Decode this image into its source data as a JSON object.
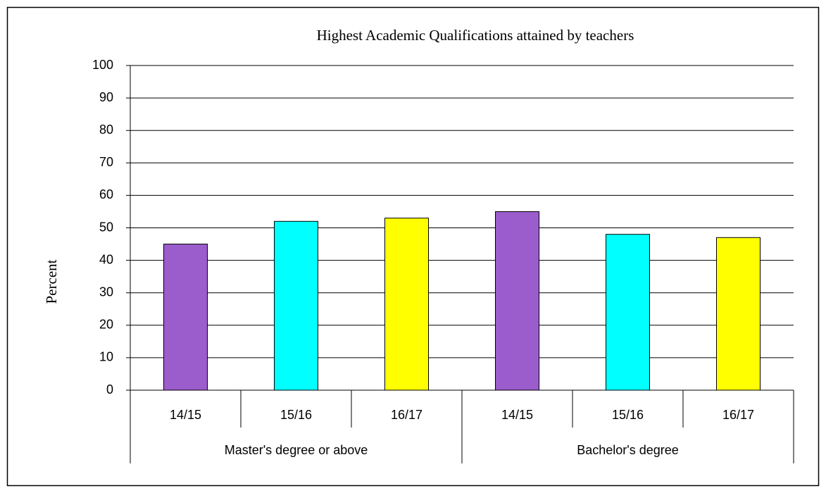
{
  "chart_data": {
    "type": "bar",
    "title": "Highest  Academic Qualifications attained by teachers",
    "y_label": "Percent",
    "groups": [
      {
        "label": "Master's degree or above",
        "categories": [
          "14/15",
          "15/16",
          "16/17"
        ],
        "values": [
          45,
          52,
          53
        ]
      },
      {
        "label": "Bachelor's degree",
        "categories": [
          "14/15",
          "15/16",
          "16/17"
        ],
        "values": [
          55,
          48,
          47
        ]
      }
    ],
    "colors": [
      "#9b5ccc",
      "#00ffff",
      "#ffff00"
    ],
    "ylim": [
      0,
      100
    ],
    "yticks": [
      0,
      10,
      20,
      30,
      40,
      50,
      60,
      70,
      80,
      90,
      100
    ],
    "grid": true
  }
}
